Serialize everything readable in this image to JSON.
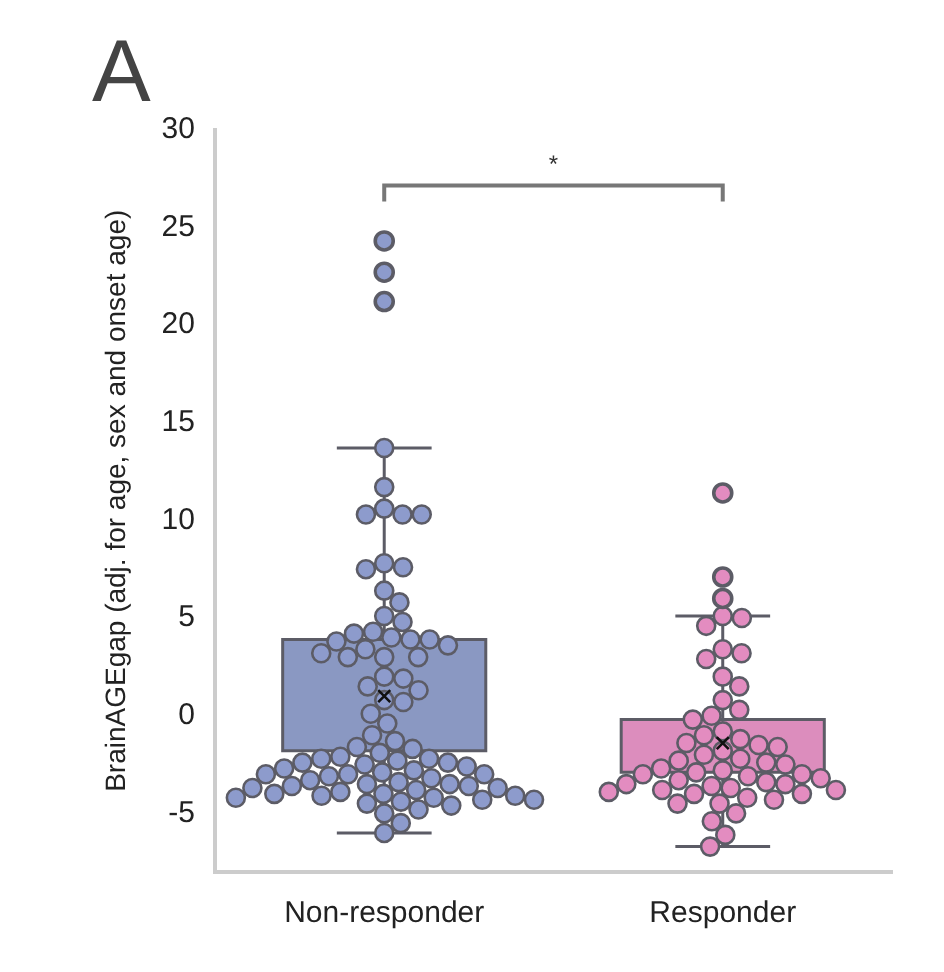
{
  "chart_data": {
    "type": "box",
    "title": "A",
    "ylabel": "BrainAGEgap (adj. for age, sex and onset age)",
    "categories": [
      "Non-responder",
      "Responder"
    ],
    "colors": [
      "#8a98c2",
      "#dc8dbd"
    ],
    "boxes": [
      {
        "low": -6.0,
        "q1": -1.8,
        "q3": 3.9,
        "high": 13.7,
        "mean": 1.0,
        "outliers": [
          24.3,
          22.7,
          21.2
        ]
      },
      {
        "low": -6.7,
        "q1": -2.9,
        "q3": -0.2,
        "high": 5.1,
        "mean": -1.4,
        "outliers": [
          11.4,
          7.1,
          6.0
        ]
      }
    ],
    "series": [
      {
        "type": "scatter",
        "color": "#8d9bcc",
        "x": [
          "Non-responder",
          "Non-responder",
          "Non-responder",
          "Non-responder",
          "Non-responder",
          "Non-responder",
          "Non-responder",
          "Non-responder",
          "Non-responder",
          "Non-responder",
          "Non-responder",
          "Non-responder",
          "Non-responder",
          "Non-responder",
          "Non-responder",
          "Non-responder",
          "Non-responder",
          "Non-responder",
          "Non-responder",
          "Non-responder",
          "Non-responder",
          "Non-responder",
          "Non-responder",
          "Non-responder",
          "Non-responder",
          "Non-responder",
          "Non-responder",
          "Non-responder",
          "Non-responder",
          "Non-responder",
          "Non-responder",
          "Non-responder",
          "Non-responder",
          "Non-responder",
          "Non-responder",
          "Non-responder",
          "Non-responder",
          "Non-responder",
          "Non-responder",
          "Non-responder",
          "Non-responder",
          "Non-responder",
          "Non-responder",
          "Non-responder",
          "Non-responder",
          "Non-responder",
          "Non-responder",
          "Non-responder",
          "Non-responder",
          "Non-responder",
          "Non-responder",
          "Non-responder",
          "Non-responder",
          "Non-responder",
          "Non-responder",
          "Non-responder",
          "Non-responder",
          "Non-responder",
          "Non-responder",
          "Non-responder",
          "Non-responder",
          "Non-responder",
          "Non-responder",
          "Non-responder",
          "Non-responder",
          "Non-responder",
          "Non-responder",
          "Non-responder",
          "Non-responder",
          "Non-responder",
          "Non-responder",
          "Non-responder",
          "Non-responder",
          "Non-responder",
          "Non-responder",
          "Non-responder",
          "Non-responder",
          "Non-responder",
          "Non-responder"
        ],
        "values": [
          13.7,
          11.7,
          10.6,
          10.3,
          10.3,
          10.3,
          7.8,
          7.6,
          7.5,
          6.4,
          5.8,
          5.1,
          4.8,
          4.3,
          4.2,
          4.0,
          3.9,
          3.9,
          3.8,
          3.6,
          3.4,
          3.2,
          3.0,
          3.0,
          3.0,
          2.0,
          1.9,
          1.5,
          1.3,
          0.8,
          0.7,
          0.1,
          -0.4,
          -1.0,
          -1.3,
          -1.6,
          -1.7,
          -1.9,
          -2.1,
          -2.2,
          -2.2,
          -2.3,
          -2.4,
          -2.4,
          -2.5,
          -2.6,
          -2.7,
          -2.8,
          -2.9,
          -3.0,
          -3.0,
          -3.0,
          -3.1,
          -3.2,
          -3.3,
          -3.4,
          -3.5,
          -3.5,
          -3.6,
          -3.6,
          -3.7,
          -3.7,
          -3.8,
          -3.9,
          -4.0,
          -4.0,
          -4.1,
          -4.1,
          -4.2,
          -4.2,
          -4.3,
          -4.3,
          -4.4,
          -4.5,
          -4.6,
          -4.8,
          -5.0,
          -5.5,
          -6.0
        ]
      },
      {
        "type": "scatter",
        "color": "#e38cc0",
        "x": [
          "Responder",
          "Responder",
          "Responder",
          "Responder",
          "Responder",
          "Responder",
          "Responder",
          "Responder",
          "Responder",
          "Responder",
          "Responder",
          "Responder",
          "Responder",
          "Responder",
          "Responder",
          "Responder",
          "Responder",
          "Responder",
          "Responder",
          "Responder",
          "Responder",
          "Responder",
          "Responder",
          "Responder",
          "Responder",
          "Responder",
          "Responder",
          "Responder",
          "Responder",
          "Responder",
          "Responder",
          "Responder",
          "Responder",
          "Responder",
          "Responder",
          "Responder",
          "Responder",
          "Responder",
          "Responder",
          "Responder",
          "Responder",
          "Responder",
          "Responder",
          "Responder",
          "Responder",
          "Responder",
          "Responder",
          "Responder",
          "Responder",
          "Responder"
        ],
        "values": [
          5.1,
          5.0,
          4.6,
          3.4,
          3.2,
          2.9,
          2.0,
          1.5,
          0.8,
          0.3,
          0.0,
          -0.2,
          -0.8,
          -1.0,
          -1.2,
          -1.4,
          -1.5,
          -1.6,
          -1.8,
          -2.0,
          -2.2,
          -2.3,
          -2.4,
          -2.5,
          -2.7,
          -2.8,
          -2.9,
          -3.0,
          -3.0,
          -3.1,
          -3.2,
          -3.3,
          -3.4,
          -3.5,
          -3.5,
          -3.6,
          -3.7,
          -3.8,
          -3.8,
          -3.9,
          -4.0,
          -4.0,
          -4.2,
          -4.3,
          -4.5,
          -4.5,
          -5.0,
          -5.4,
          -6.1,
          -6.7
        ]
      }
    ],
    "ylim": [
      -8,
      30
    ],
    "yticks": [
      -5,
      0,
      5,
      10,
      15,
      20,
      25,
      30
    ],
    "annotations": [
      "*"
    ],
    "grid": false,
    "legend": false
  }
}
